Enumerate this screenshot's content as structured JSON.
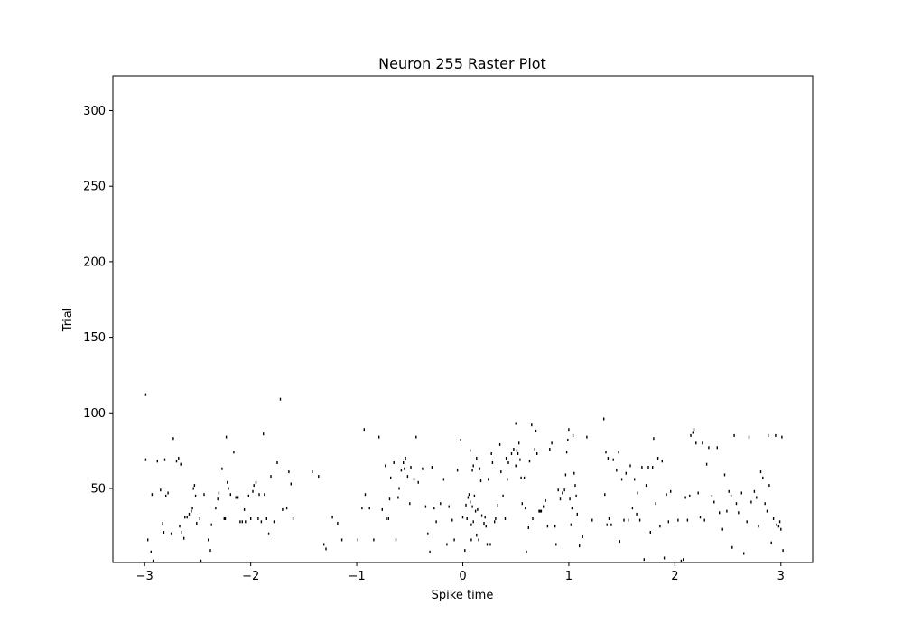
{
  "chart_data": {
    "type": "scatter",
    "marker": "vertical-tick",
    "title": "Neuron 255 Raster Plot",
    "xlabel": "Spike time",
    "ylabel": "Trial",
    "xlim": [
      -3.3,
      3.3
    ],
    "ylim": [
      1,
      323
    ],
    "xticks": [
      -3,
      -2,
      -1,
      0,
      1,
      2,
      3
    ],
    "xtick_labels": [
      "−3",
      "−2",
      "−1",
      "0",
      "1",
      "2",
      "3"
    ],
    "yticks": [
      50,
      100,
      150,
      200,
      250,
      300
    ],
    "ytick_labels": [
      "50",
      "100",
      "150",
      "200",
      "250",
      "300"
    ],
    "grid": false,
    "colors": {
      "marker": "#000000",
      "axes": "#000000",
      "background": "#ffffff"
    },
    "series": [
      {
        "name": "spikes",
        "points": [
          [
            -2.99,
            112
          ],
          [
            -2.99,
            69
          ],
          [
            -2.97,
            16
          ],
          [
            -2.94,
            8
          ],
          [
            -2.93,
            46
          ],
          [
            -2.92,
            2
          ],
          [
            -2.88,
            68
          ],
          [
            -2.85,
            49
          ],
          [
            -2.83,
            27
          ],
          [
            -2.82,
            21
          ],
          [
            -2.81,
            69
          ],
          [
            -2.8,
            45
          ],
          [
            -2.78,
            47
          ],
          [
            -2.75,
            20
          ],
          [
            -2.73,
            83
          ],
          [
            -2.7,
            68
          ],
          [
            -2.68,
            70
          ],
          [
            -2.67,
            25
          ],
          [
            -2.66,
            66
          ],
          [
            -2.65,
            21
          ],
          [
            -2.63,
            17
          ],
          [
            -2.62,
            31
          ],
          [
            -2.6,
            31
          ],
          [
            -2.58,
            33
          ],
          [
            -2.56,
            35
          ],
          [
            -2.55,
            37
          ],
          [
            -2.54,
            50
          ],
          [
            -2.53,
            52
          ],
          [
            -2.52,
            45
          ],
          [
            -2.51,
            27
          ],
          [
            -2.48,
            30
          ],
          [
            -2.47,
            2
          ],
          [
            -2.44,
            46
          ],
          [
            -2.4,
            16
          ],
          [
            -2.38,
            9
          ],
          [
            -2.37,
            26
          ],
          [
            -2.33,
            37
          ],
          [
            -2.31,
            43
          ],
          [
            -2.3,
            47
          ],
          [
            -2.27,
            63
          ],
          [
            -2.25,
            30
          ],
          [
            -2.24,
            30
          ],
          [
            -2.23,
            84
          ],
          [
            -2.22,
            54
          ],
          [
            -2.21,
            50
          ],
          [
            -2.19,
            46
          ],
          [
            -2.16,
            74
          ],
          [
            -2.14,
            44
          ],
          [
            -2.12,
            44
          ],
          [
            -2.1,
            28
          ],
          [
            -2.08,
            28
          ],
          [
            -2.06,
            36
          ],
          [
            -2.05,
            28
          ],
          [
            -2.02,
            45
          ],
          [
            -2.0,
            30
          ],
          [
            -1.98,
            48
          ],
          [
            -1.97,
            52
          ],
          [
            -1.95,
            54
          ],
          [
            -1.93,
            30
          ],
          [
            -1.92,
            46
          ],
          [
            -1.9,
            28
          ],
          [
            -1.88,
            86
          ],
          [
            -1.87,
            46
          ],
          [
            -1.85,
            30
          ],
          [
            -1.83,
            20
          ],
          [
            -1.81,
            58
          ],
          [
            -1.78,
            28
          ],
          [
            -1.75,
            67
          ],
          [
            -1.72,
            109
          ],
          [
            -1.7,
            36
          ],
          [
            -1.66,
            37
          ],
          [
            -1.64,
            61
          ],
          [
            -1.62,
            53
          ],
          [
            -1.6,
            30
          ],
          [
            -1.42,
            61
          ],
          [
            -1.36,
            58
          ],
          [
            -1.31,
            13
          ],
          [
            -1.29,
            10
          ],
          [
            -1.23,
            31
          ],
          [
            -1.18,
            27
          ],
          [
            -1.14,
            16
          ],
          [
            -0.99,
            16
          ],
          [
            -0.95,
            37
          ],
          [
            -0.93,
            89
          ],
          [
            -0.92,
            46
          ],
          [
            -0.88,
            37
          ],
          [
            -0.84,
            16
          ],
          [
            -0.79,
            84
          ],
          [
            -0.76,
            36
          ],
          [
            -0.73,
            65
          ],
          [
            -0.72,
            30
          ],
          [
            -0.7,
            30
          ],
          [
            -0.69,
            43
          ],
          [
            -0.68,
            57
          ],
          [
            -0.65,
            67
          ],
          [
            -0.63,
            16
          ],
          [
            -0.61,
            44
          ],
          [
            -0.6,
            50
          ],
          [
            -0.58,
            62
          ],
          [
            -0.56,
            67
          ],
          [
            -0.55,
            63
          ],
          [
            -0.54,
            70
          ],
          [
            -0.52,
            58
          ],
          [
            -0.5,
            40
          ],
          [
            -0.49,
            64
          ],
          [
            -0.46,
            56
          ],
          [
            -0.44,
            84
          ],
          [
            -0.42,
            54
          ],
          [
            -0.38,
            63
          ],
          [
            -0.35,
            38
          ],
          [
            -0.33,
            20
          ],
          [
            -0.31,
            8
          ],
          [
            -0.29,
            64
          ],
          [
            -0.27,
            37
          ],
          [
            -0.25,
            28
          ],
          [
            -0.21,
            40
          ],
          [
            -0.18,
            56
          ],
          [
            -0.15,
            13
          ],
          [
            -0.13,
            38
          ],
          [
            -0.1,
            29
          ],
          [
            -0.08,
            16
          ],
          [
            -0.05,
            62
          ],
          [
            -0.02,
            82
          ],
          [
            0.0,
            31
          ],
          [
            0.02,
            9
          ],
          [
            0.03,
            39
          ],
          [
            0.04,
            30
          ],
          [
            0.05,
            44
          ],
          [
            0.06,
            46
          ],
          [
            0.07,
            75
          ],
          [
            0.07,
            41
          ],
          [
            0.08,
            16
          ],
          [
            0.08,
            26
          ],
          [
            0.09,
            38
          ],
          [
            0.09,
            62
          ],
          [
            0.1,
            65
          ],
          [
            0.1,
            28
          ],
          [
            0.11,
            45
          ],
          [
            0.12,
            35
          ],
          [
            0.13,
            19
          ],
          [
            0.13,
            70
          ],
          [
            0.14,
            36
          ],
          [
            0.15,
            16
          ],
          [
            0.16,
            63
          ],
          [
            0.17,
            55
          ],
          [
            0.18,
            32
          ],
          [
            0.2,
            27
          ],
          [
            0.21,
            31
          ],
          [
            0.22,
            25
          ],
          [
            0.23,
            13
          ],
          [
            0.24,
            56
          ],
          [
            0.26,
            13
          ],
          [
            0.27,
            73
          ],
          [
            0.28,
            67
          ],
          [
            0.3,
            28
          ],
          [
            0.31,
            30
          ],
          [
            0.33,
            39
          ],
          [
            0.35,
            79
          ],
          [
            0.36,
            61
          ],
          [
            0.38,
            45
          ],
          [
            0.4,
            30
          ],
          [
            0.41,
            70
          ],
          [
            0.42,
            56
          ],
          [
            0.43,
            67
          ],
          [
            0.46,
            73
          ],
          [
            0.48,
            76
          ],
          [
            0.5,
            93
          ],
          [
            0.5,
            65
          ],
          [
            0.51,
            75
          ],
          [
            0.52,
            73
          ],
          [
            0.53,
            80
          ],
          [
            0.54,
            69
          ],
          [
            0.55,
            57
          ],
          [
            0.56,
            40
          ],
          [
            0.58,
            57
          ],
          [
            0.59,
            37
          ],
          [
            0.6,
            8
          ],
          [
            0.62,
            24
          ],
          [
            0.63,
            68
          ],
          [
            0.65,
            92
          ],
          [
            0.66,
            30
          ],
          [
            0.68,
            76
          ],
          [
            0.69,
            88
          ],
          [
            0.7,
            73
          ],
          [
            0.72,
            35
          ],
          [
            0.73,
            35
          ],
          [
            0.74,
            35
          ],
          [
            0.76,
            38
          ],
          [
            0.78,
            42
          ],
          [
            0.8,
            25
          ],
          [
            0.82,
            76
          ],
          [
            0.84,
            80
          ],
          [
            0.87,
            25
          ],
          [
            0.88,
            13
          ],
          [
            0.9,
            49
          ],
          [
            0.92,
            43
          ],
          [
            0.94,
            47
          ],
          [
            0.96,
            49
          ],
          [
            0.97,
            59
          ],
          [
            0.98,
            74
          ],
          [
            0.99,
            82
          ],
          [
            1.0,
            89
          ],
          [
            1.01,
            43
          ],
          [
            1.02,
            26
          ],
          [
            1.03,
            37
          ],
          [
            1.04,
            85
          ],
          [
            1.05,
            60
          ],
          [
            1.06,
            52
          ],
          [
            1.07,
            45
          ],
          [
            1.08,
            33
          ],
          [
            1.1,
            12
          ],
          [
            1.13,
            18
          ],
          [
            1.17,
            84
          ],
          [
            1.22,
            29
          ],
          [
            1.33,
            96
          ],
          [
            1.34,
            46
          ],
          [
            1.35,
            74
          ],
          [
            1.36,
            26
          ],
          [
            1.37,
            70
          ],
          [
            1.38,
            30
          ],
          [
            1.4,
            26
          ],
          [
            1.42,
            69
          ],
          [
            1.45,
            62
          ],
          [
            1.47,
            74
          ],
          [
            1.48,
            15
          ],
          [
            1.5,
            56
          ],
          [
            1.52,
            29
          ],
          [
            1.54,
            60
          ],
          [
            1.56,
            29
          ],
          [
            1.58,
            65
          ],
          [
            1.6,
            37
          ],
          [
            1.62,
            56
          ],
          [
            1.64,
            33
          ],
          [
            1.65,
            47
          ],
          [
            1.67,
            29
          ],
          [
            1.69,
            64
          ],
          [
            1.71,
            3
          ],
          [
            1.73,
            52
          ],
          [
            1.75,
            64
          ],
          [
            1.77,
            21
          ],
          [
            1.79,
            64
          ],
          [
            1.8,
            83
          ],
          [
            1.82,
            40
          ],
          [
            1.84,
            70
          ],
          [
            1.86,
            25
          ],
          [
            1.88,
            68
          ],
          [
            1.9,
            4
          ],
          [
            1.92,
            46
          ],
          [
            1.94,
            28
          ],
          [
            1.96,
            48
          ],
          [
            2.03,
            29
          ],
          [
            2.06,
            2
          ],
          [
            2.08,
            3
          ],
          [
            2.1,
            44
          ],
          [
            2.12,
            29
          ],
          [
            2.14,
            45
          ],
          [
            2.15,
            85
          ],
          [
            2.17,
            87
          ],
          [
            2.18,
            89
          ],
          [
            2.2,
            80
          ],
          [
            2.22,
            47
          ],
          [
            2.24,
            31
          ],
          [
            2.26,
            80
          ],
          [
            2.28,
            29
          ],
          [
            2.3,
            66
          ],
          [
            2.32,
            77
          ],
          [
            2.35,
            45
          ],
          [
            2.37,
            41
          ],
          [
            2.4,
            77
          ],
          [
            2.42,
            34
          ],
          [
            2.45,
            23
          ],
          [
            2.47,
            59
          ],
          [
            2.49,
            35
          ],
          [
            2.51,
            48
          ],
          [
            2.53,
            45
          ],
          [
            2.54,
            11
          ],
          [
            2.56,
            85
          ],
          [
            2.58,
            40
          ],
          [
            2.6,
            34
          ],
          [
            2.63,
            47
          ],
          [
            2.65,
            7
          ],
          [
            2.68,
            28
          ],
          [
            2.7,
            84
          ],
          [
            2.72,
            41
          ],
          [
            2.75,
            48
          ],
          [
            2.77,
            44
          ],
          [
            2.79,
            25
          ],
          [
            2.81,
            61
          ],
          [
            2.83,
            57
          ],
          [
            2.85,
            40
          ],
          [
            2.87,
            35
          ],
          [
            2.88,
            85
          ],
          [
            2.89,
            52
          ],
          [
            2.91,
            14
          ],
          [
            2.93,
            30
          ],
          [
            2.95,
            85
          ],
          [
            2.96,
            26
          ],
          [
            2.98,
            25
          ],
          [
            2.99,
            28
          ],
          [
            3.0,
            23
          ],
          [
            3.01,
            84
          ],
          [
            3.02,
            9
          ]
        ]
      }
    ]
  }
}
